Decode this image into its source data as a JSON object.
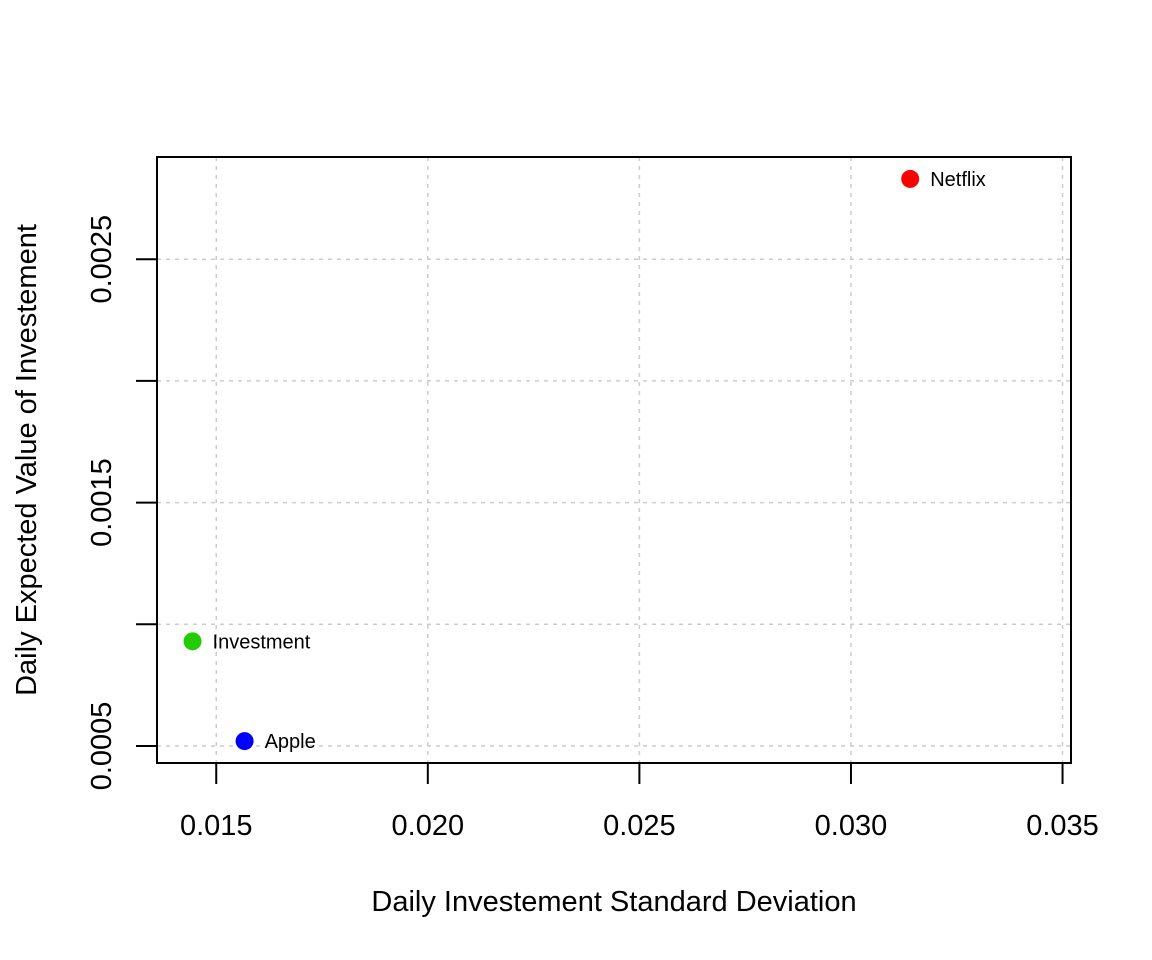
{
  "chart_data": {
    "type": "scatter",
    "title": "",
    "xlabel": "Daily Investement Standard Deviation",
    "ylabel": "Daily Expected Value of Investement",
    "xlim": [
      0.0136,
      0.0352
    ],
    "ylim": [
      0.00043,
      0.00292
    ],
    "x_ticks": [
      0.015,
      0.02,
      0.025,
      0.03,
      0.035
    ],
    "x_tick_labels": [
      "0.015",
      "0.020",
      "0.025",
      "0.030",
      "0.035"
    ],
    "y_ticks": [
      0.0005,
      0.001,
      0.0015,
      0.002,
      0.0025
    ],
    "y_tick_labels": [
      "0.0005",
      "",
      "0.0015",
      "",
      "0.0025"
    ],
    "grid": true,
    "points": [
      {
        "label": "Netflix",
        "x": 0.0314,
        "y": 0.00283,
        "color": "#ff0000"
      },
      {
        "label": "Investment",
        "x": 0.01444,
        "y": 0.00093,
        "color": "#22cc00"
      },
      {
        "label": "Apple",
        "x": 0.01567,
        "y": 0.00052,
        "color": "#0000ff"
      }
    ]
  }
}
